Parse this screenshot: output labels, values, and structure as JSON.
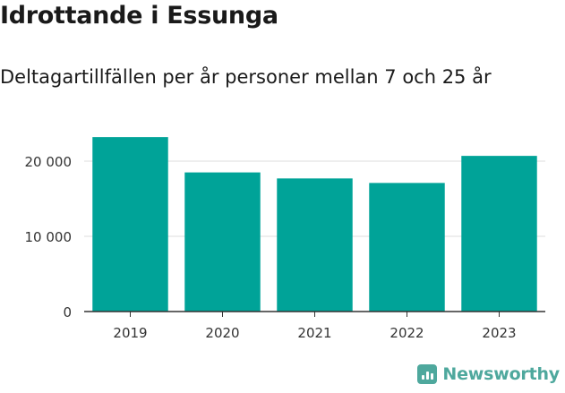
{
  "title": "Idrottande i Essunga",
  "subtitle": "Deltagartillfällen per år personer mellan 7 och 25 år",
  "brand": {
    "name": "Newsworthy",
    "icon": "newsworthy-logo-icon",
    "color": "#4ea89d"
  },
  "chart_data": {
    "type": "bar",
    "categories": [
      "2019",
      "2020",
      "2021",
      "2022",
      "2023"
    ],
    "values": [
      23200,
      18500,
      17700,
      17100,
      20700
    ],
    "ylim": [
      0,
      25000
    ],
    "yticks": [
      0,
      10000,
      20000
    ],
    "ytick_labels": [
      "0",
      "10 000",
      "20 000"
    ],
    "grid": true,
    "bar_color": "#00a398"
  }
}
